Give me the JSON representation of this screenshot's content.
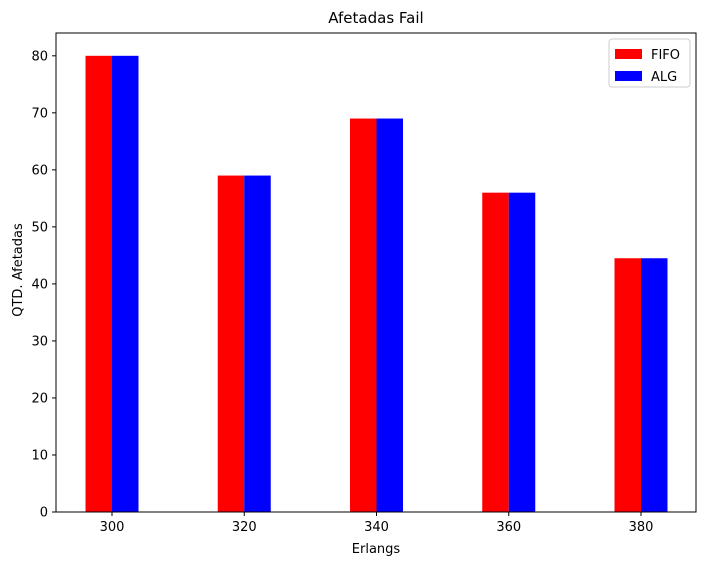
{
  "chart_data": {
    "type": "bar",
    "title": "Afetadas Fail",
    "xlabel": "Erlangs",
    "ylabel": "QTD. Afetadas",
    "categories": [
      "300",
      "320",
      "340",
      "360",
      "380"
    ],
    "series": [
      {
        "name": "FIFO",
        "color": "#ff0000",
        "values": [
          80,
          59,
          69,
          56,
          44.5
        ]
      },
      {
        "name": "ALG",
        "color": "#0000ff",
        "values": [
          80,
          59,
          69,
          56,
          44.5
        ]
      }
    ],
    "ylim": [
      0,
      84
    ],
    "yticks": [
      0,
      10,
      20,
      30,
      40,
      50,
      60,
      70,
      80
    ],
    "grid": false,
    "legend_position": "top-right"
  }
}
